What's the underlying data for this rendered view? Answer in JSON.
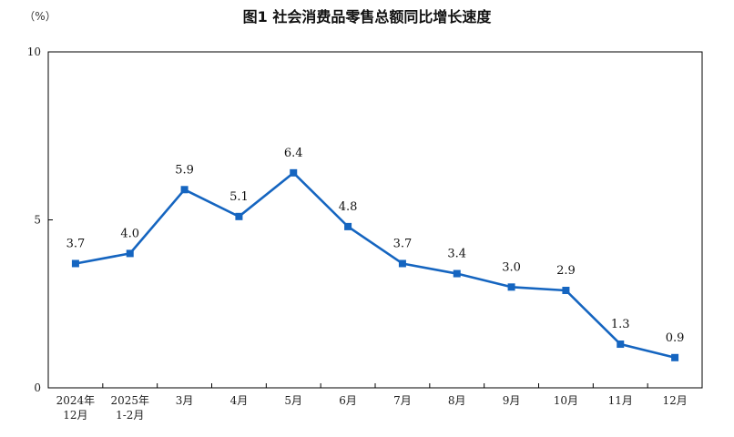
{
  "colors": {
    "series": "#1565c0",
    "axis": "#000000"
  },
  "chart_data": {
    "type": "line",
    "title": "图1 社会消费品零售总额同比增长速度",
    "ylabel": "（%）",
    "xlabel": "",
    "ylim": [
      0,
      10
    ],
    "yticks": [
      "0",
      "5",
      "10"
    ],
    "grid": false,
    "legend": "none",
    "categories": [
      [
        "2024年",
        "12月"
      ],
      [
        "2025年",
        "1-2月"
      ],
      [
        "3月"
      ],
      [
        "4月"
      ],
      [
        "5月"
      ],
      [
        "6月"
      ],
      [
        "7月"
      ],
      [
        "8月"
      ],
      [
        "9月"
      ],
      [
        "10月"
      ],
      [
        "11月"
      ],
      [
        "12月"
      ]
    ],
    "series": [
      {
        "values": [
          3.7,
          4.0,
          5.9,
          5.1,
          6.4,
          4.8,
          3.7,
          3.4,
          3.0,
          2.9,
          1.3,
          0.9
        ],
        "data_labels": [
          "3.7",
          "4.0",
          "5.9",
          "5.1",
          "6.4",
          "4.8",
          "3.7",
          "3.4",
          "3.0",
          "2.9",
          "1.3",
          "0.9"
        ],
        "marker": "square"
      }
    ]
  }
}
